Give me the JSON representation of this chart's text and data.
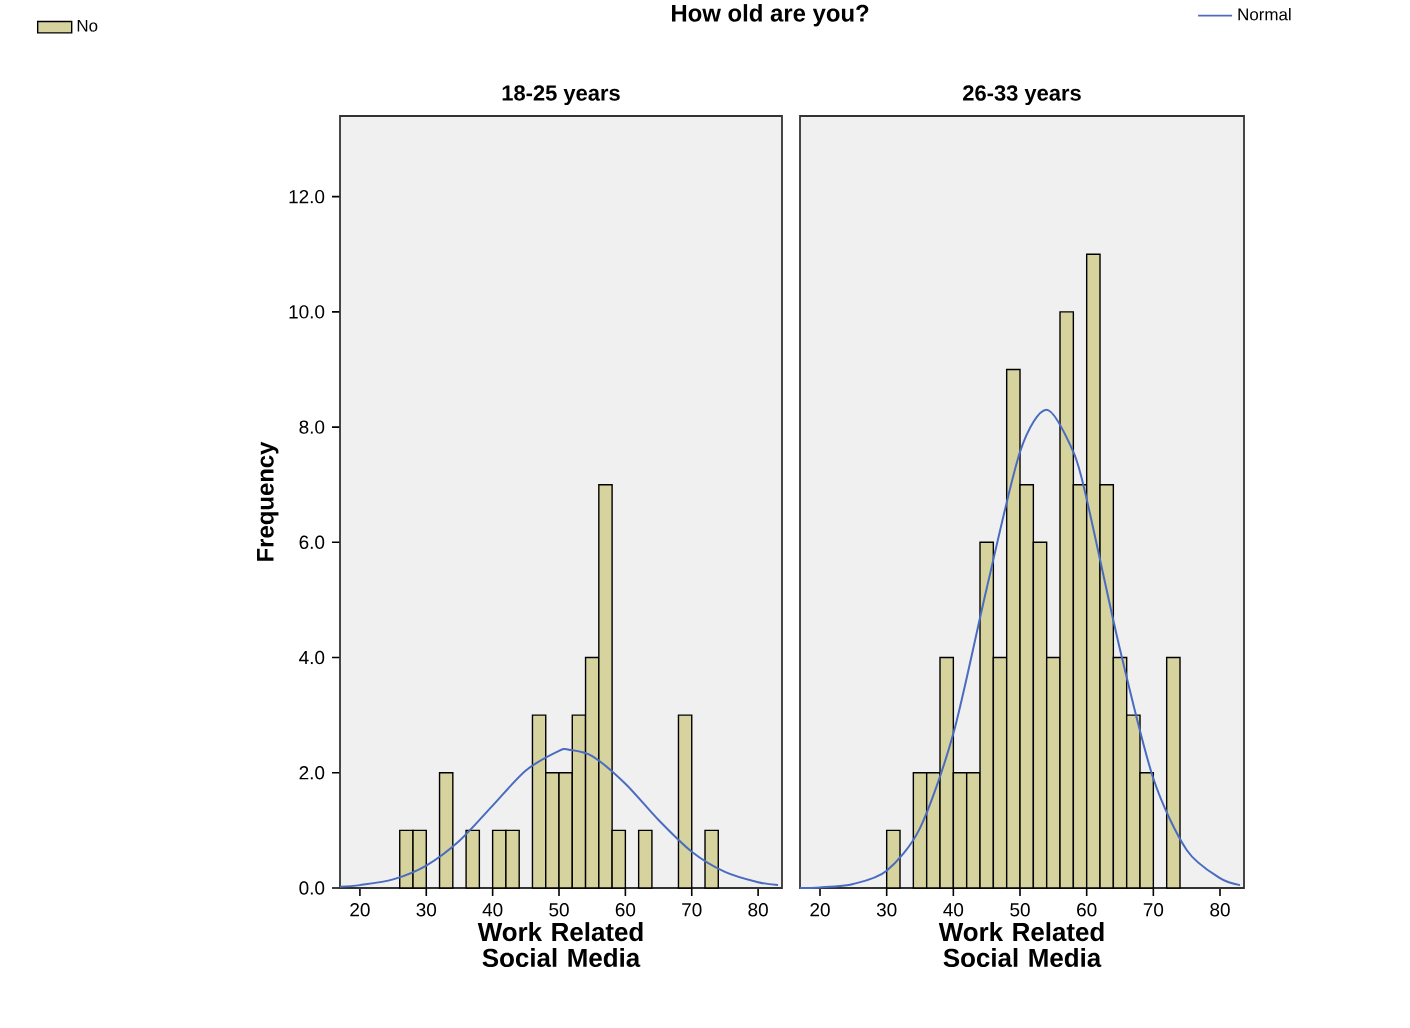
{
  "chart_data": [
    {
      "type": "histogram",
      "title": "How old are you?",
      "subtitle": "18-25 years",
      "xlabel": "Work Related Social Media",
      "ylabel": "Frequency",
      "xlim": [
        17,
        83.6
      ],
      "ylim": [
        0,
        13.4
      ],
      "xticks": [
        20,
        30,
        40,
        50,
        60,
        70,
        80
      ],
      "yticks": [
        {
          "value": 0,
          "label": "0.0"
        },
        {
          "value": 2,
          "label": "2.0"
        },
        {
          "value": 4,
          "label": "4.0"
        },
        {
          "value": 6,
          "label": "6.0"
        },
        {
          "value": 8,
          "label": "8.0"
        },
        {
          "value": 10,
          "label": "10.0"
        },
        {
          "value": 12,
          "label": "12.0"
        }
      ],
      "legend": "top left",
      "series": [
        {
          "type": "histogram",
          "name": "No",
          "color": "#d6d39f",
          "bins": [
            26,
            28,
            30,
            32,
            34,
            36,
            38,
            40,
            42,
            44,
            46,
            48,
            50,
            52,
            54,
            56,
            58,
            60,
            62,
            64,
            66,
            68,
            70,
            72,
            74
          ],
          "values": [
            1,
            1,
            0,
            2,
            0,
            1,
            0,
            1,
            1,
            0,
            3,
            2,
            2,
            3,
            4,
            7,
            1,
            0,
            1,
            0,
            0,
            3,
            0,
            1
          ]
        },
        {
          "type": "line",
          "color": "#4a6cc0",
          "x": [
            17,
            20,
            25,
            30,
            35,
            40,
            45,
            50,
            51.5,
            55,
            60,
            65,
            70,
            75,
            80,
            83
          ],
          "values": [
            0.02,
            0.05,
            0.15,
            0.39,
            0.82,
            1.43,
            2.04,
            2.38,
            2.4,
            2.29,
            1.81,
            1.18,
            0.63,
            0.28,
            0.1,
            0.05
          ]
        }
      ]
    },
    {
      "type": "histogram",
      "subtitle": "26-33 years",
      "xlabel": "Work Related Social Media",
      "xlim": [
        17,
        83.6
      ],
      "ylim": [
        0,
        13.4
      ],
      "xticks": [
        20,
        30,
        40,
        50,
        60,
        70,
        80
      ],
      "tick_labels": "x",
      "legend": "top right",
      "series": [
        {
          "type": "histogram",
          "color": "#d6d39f",
          "bins": [
            30,
            32,
            34,
            36,
            38,
            40,
            42,
            44,
            46,
            48,
            50,
            52,
            54,
            56,
            58,
            60,
            62,
            64,
            66,
            68,
            70,
            72,
            74
          ],
          "values": [
            1,
            0,
            2,
            2,
            4,
            2,
            2,
            6,
            4,
            9,
            7,
            6,
            4,
            10,
            7,
            11,
            7,
            4,
            3,
            2,
            0,
            4
          ]
        },
        {
          "type": "line",
          "name": "Normal",
          "color": "#4a6cc0",
          "x": [
            17,
            20,
            25,
            30,
            35,
            40,
            45,
            50,
            54,
            58,
            60,
            65,
            70,
            75,
            80,
            83
          ],
          "values": [
            0.0,
            0.01,
            0.07,
            0.3,
            1.04,
            2.68,
            5.2,
            7.57,
            8.3,
            7.57,
            6.75,
            4.14,
            1.9,
            0.66,
            0.17,
            0.05
          ]
        }
      ]
    }
  ]
}
